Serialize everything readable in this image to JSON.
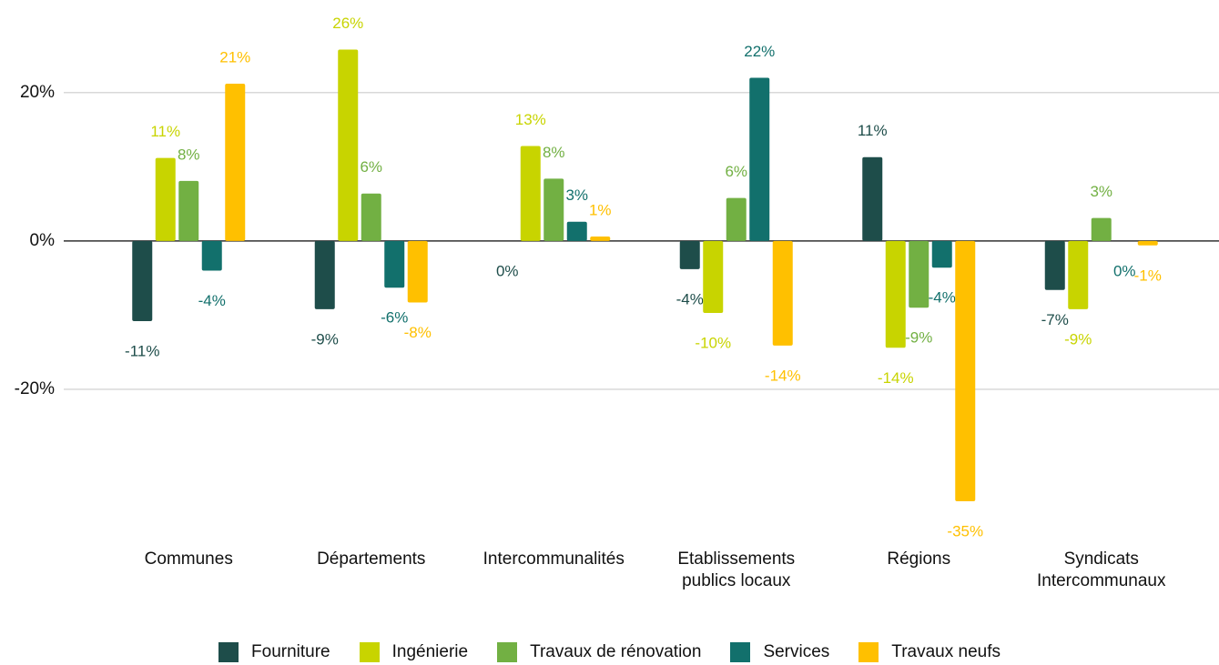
{
  "chart_data": {
    "type": "bar",
    "categories": [
      "Communes",
      "Départements",
      "Intercommunalités",
      "Etablissements publics locaux",
      "Régions",
      "Syndicats Intercommunaux"
    ],
    "series": [
      {
        "name": "Fourniture",
        "color": "#1e4d4a",
        "values": [
          -10.8,
          -9.2,
          0,
          -3.8,
          11.3,
          -6.6
        ],
        "value_labels": [
          "-11%",
          "-9%",
          "0%",
          "-4%",
          "11%",
          "-7%"
        ]
      },
      {
        "name": "Ingénierie",
        "color": "#c8d400",
        "values": [
          11.2,
          25.8,
          12.8,
          -9.7,
          -14.4,
          -9.2
        ],
        "value_labels": [
          "11%",
          "26%",
          "13%",
          "-10%",
          "-14%",
          "-9%"
        ]
      },
      {
        "name": "Travaux de rénovation",
        "color": "#72b043",
        "values": [
          8.1,
          6.4,
          8.4,
          5.8,
          -9.0,
          3.1
        ],
        "value_labels": [
          "8%",
          "6%",
          "8%",
          "6%",
          "-9%",
          "3%"
        ]
      },
      {
        "name": "Services",
        "color": "#12706c",
        "values": [
          -4.0,
          -6.3,
          2.6,
          22.0,
          -3.6,
          0
        ],
        "value_labels": [
          "-4%",
          "-6%",
          "3%",
          "22%",
          "-4%",
          "0%"
        ]
      },
      {
        "name": "Travaux neufs",
        "color": "#ffc000",
        "values": [
          21.2,
          -8.3,
          0.6,
          -14.1,
          -35.1,
          -0.6
        ],
        "value_labels": [
          "21%",
          "-8%",
          "1%",
          "-14%",
          "-35%",
          "-1%"
        ]
      }
    ],
    "ylim": [
      -40,
      32
    ],
    "yticks": [
      {
        "value": -20,
        "label": "-20%"
      },
      {
        "value": 0,
        "label": "0%"
      },
      {
        "value": 20,
        "label": "20%"
      }
    ],
    "grid": true,
    "legend": "bottom"
  }
}
